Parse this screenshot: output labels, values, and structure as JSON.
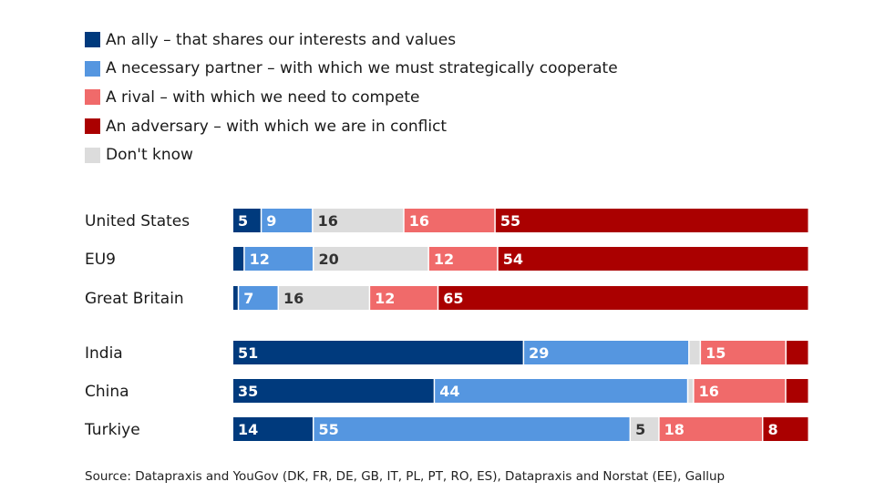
{
  "chart_data": {
    "type": "bar",
    "orientation": "horizontal",
    "stacked": true,
    "normalized_percent": true,
    "legend_placement": "top-left",
    "grid": false,
    "categories": [
      "United States",
      "EU9",
      "Great Britain",
      "India",
      "China",
      "Turkiye"
    ],
    "series": [
      {
        "name": "An ally – that shares our interests and values",
        "color": "#003a7d",
        "values": [
          5,
          2,
          1,
          51,
          35,
          14
        ],
        "labels": [
          "5",
          "",
          "",
          "51",
          "35",
          "14"
        ]
      },
      {
        "name": "A necessary partner – with which we must strategically cooperate",
        "color": "#5596e0",
        "values": [
          9,
          12,
          7,
          29,
          44,
          55
        ],
        "labels": [
          "9",
          "12",
          "7",
          "29",
          "44",
          "55"
        ]
      },
      {
        "name": "Don't know",
        "color": "#dcdcdc",
        "values": [
          16,
          20,
          16,
          2,
          1,
          5
        ],
        "labels": [
          "16",
          "20",
          "16",
          "",
          "",
          "5"
        ]
      },
      {
        "name": "A rival – with which we need to compete",
        "color": "#f06a6a",
        "values": [
          16,
          12,
          12,
          15,
          16,
          18
        ],
        "labels": [
          "16",
          "12",
          "12",
          "15",
          "16",
          "18"
        ]
      },
      {
        "name": "An adversary – with which we are in conflict",
        "color": "#aa0000",
        "values": [
          55,
          54,
          65,
          4,
          4,
          8
        ],
        "labels": [
          "55",
          "54",
          "65",
          "",
          "",
          "8"
        ]
      }
    ],
    "legend_order": [
      0,
      1,
      3,
      4,
      2
    ]
  },
  "source": "Source: Datapraxis and YouGov (DK, FR, DE, GB, IT, PL, PT, RO, ES), Datapraxis and Norstat (EE), Gallup"
}
